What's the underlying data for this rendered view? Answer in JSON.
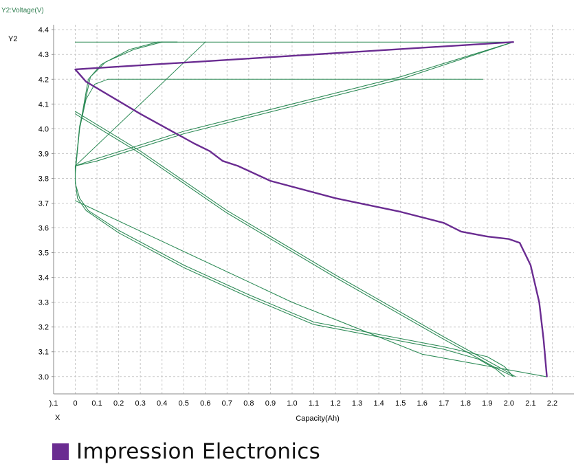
{
  "chart_data": {
    "type": "line",
    "y_axis_title": "Y2:Voltage(V)",
    "y_axis_name": "Y2",
    "x_axis_name": "X",
    "xlabel": "Capacity(Ah)",
    "xlim": [
      -0.1,
      2.3
    ],
    "ylim": [
      2.93,
      4.42
    ],
    "x_ticks": [
      -0.1,
      0,
      0.1,
      0.2,
      0.3,
      0.4,
      0.5,
      0.6,
      0.7,
      0.8,
      0.9,
      1.0,
      1.1,
      1.2,
      1.3,
      1.4,
      1.5,
      1.6,
      1.7,
      1.8,
      1.9,
      2.0,
      2.1,
      2.2
    ],
    "x_tick_labels": [
      ").1",
      "0",
      "0.1",
      "0.2",
      "0.3",
      "0.4",
      "0.5",
      "0.6",
      "0.7",
      "0.8",
      "0.9",
      "1.0",
      "1.1",
      "1.2",
      "1.3",
      "1.4",
      "1.5",
      "1.6",
      "1.7",
      "1.8",
      "1.9",
      "2.0",
      "2.1",
      "2.2"
    ],
    "y_ticks": [
      3.0,
      3.1,
      3.2,
      3.3,
      3.4,
      3.5,
      3.6,
      3.7,
      3.8,
      3.9,
      4.0,
      4.1,
      4.2,
      4.3,
      4.4
    ],
    "y_tick_labels": [
      "3.0",
      "3.1",
      "3.2",
      "3.3",
      "3.4",
      "3.5",
      "3.6",
      "3.7",
      "3.8",
      "3.9",
      "4.0",
      "4.1",
      "4.2",
      "4.3",
      "4.4"
    ],
    "grid": true,
    "colors": {
      "green": "#2e8b57",
      "purple": "#6a2c91",
      "grid": "#c8c8c8",
      "axis_title": "#2e7d4f"
    },
    "series": [
      {
        "color": "green",
        "width": 1.1,
        "points": [
          [
            0,
            4.06
          ],
          [
            0.3,
            3.9
          ],
          [
            0.7,
            3.66
          ],
          [
            1.2,
            3.4
          ],
          [
            1.7,
            3.15
          ],
          [
            1.95,
            3.03
          ],
          [
            2.02,
            3.0
          ]
        ]
      },
      {
        "color": "green",
        "width": 1.1,
        "points": [
          [
            0,
            4.07
          ],
          [
            0.3,
            3.91
          ],
          [
            0.7,
            3.67
          ],
          [
            1.2,
            3.41
          ],
          [
            1.7,
            3.16
          ],
          [
            1.95,
            3.04
          ],
          [
            2.03,
            3.0
          ]
        ]
      },
      {
        "color": "green",
        "width": 1.1,
        "points": [
          [
            2.02,
            3.0
          ],
          [
            1.98,
            3.04
          ],
          [
            1.9,
            3.08
          ],
          [
            1.7,
            3.12
          ],
          [
            1.4,
            3.17
          ],
          [
            1.1,
            3.22
          ],
          [
            0.8,
            3.33
          ],
          [
            0.5,
            3.45
          ],
          [
            0.2,
            3.59
          ],
          [
            0.06,
            3.67
          ],
          [
            0.02,
            3.72
          ],
          [
            0,
            3.78
          ],
          [
            0,
            3.85
          ],
          [
            0.1,
            3.87
          ],
          [
            0.5,
            3.98
          ],
          [
            1.0,
            4.09
          ],
          [
            1.5,
            4.2
          ],
          [
            2.02,
            4.35
          ]
        ]
      },
      {
        "color": "green",
        "width": 1.1,
        "points": [
          [
            1.98,
            3.0
          ],
          [
            1.94,
            3.03
          ],
          [
            1.86,
            3.07
          ],
          [
            1.7,
            3.11
          ],
          [
            1.4,
            3.16
          ],
          [
            1.1,
            3.21
          ],
          [
            0.8,
            3.32
          ],
          [
            0.5,
            3.44
          ],
          [
            0.2,
            3.58
          ],
          [
            0.05,
            3.67
          ],
          [
            0.01,
            3.72
          ],
          [
            0,
            3.79
          ],
          [
            0,
            3.85
          ],
          [
            0.1,
            3.88
          ],
          [
            0.5,
            3.99
          ],
          [
            1.0,
            4.1
          ],
          [
            1.5,
            4.21
          ],
          [
            2.02,
            4.35
          ]
        ]
      },
      {
        "color": "green",
        "width": 1.1,
        "points": [
          [
            0,
            3.71
          ],
          [
            1.0,
            3.3
          ],
          [
            1.6,
            3.09
          ],
          [
            2.17,
            3.0
          ]
        ]
      },
      {
        "color": "green",
        "width": 1.0,
        "points": [
          [
            0,
            4.35
          ],
          [
            2.02,
            4.35
          ]
        ]
      },
      {
        "color": "green",
        "width": 1.0,
        "points": [
          [
            0.15,
            4.2
          ],
          [
            1.88,
            4.2
          ]
        ]
      },
      {
        "color": "green",
        "width": 1.0,
        "points": [
          [
            0,
            3.85
          ],
          [
            0.6,
            4.35
          ]
        ]
      },
      {
        "color": "green",
        "width": 1.0,
        "points": [
          [
            0,
            3.84
          ],
          [
            0.02,
            4.0
          ],
          [
            0.05,
            4.12
          ],
          [
            0.09,
            4.18
          ],
          [
            0.15,
            4.2
          ]
        ]
      },
      {
        "color": "green",
        "width": 1.1,
        "points": [
          [
            0,
            3.82
          ],
          [
            0.02,
            4.0
          ],
          [
            0.06,
            4.2
          ],
          [
            0.12,
            4.26
          ],
          [
            0.25,
            4.32
          ],
          [
            0.38,
            4.35
          ],
          [
            0.47,
            4.35
          ]
        ]
      },
      {
        "color": "green",
        "width": 1.1,
        "points": [
          [
            0,
            3.83
          ],
          [
            0.02,
            4.01
          ],
          [
            0.07,
            4.21
          ],
          [
            0.14,
            4.27
          ],
          [
            0.27,
            4.32
          ],
          [
            0.4,
            4.35
          ],
          [
            0.47,
            4.35
          ]
        ]
      },
      {
        "color": "purple",
        "width": 2.4,
        "points": [
          [
            2.02,
            4.35
          ],
          [
            0,
            4.24
          ],
          [
            0.05,
            4.19
          ],
          [
            0.3,
            4.06
          ],
          [
            0.55,
            3.94
          ],
          [
            0.62,
            3.91
          ],
          [
            0.68,
            3.87
          ],
          [
            0.75,
            3.85
          ],
          [
            0.9,
            3.79
          ],
          [
            1.2,
            3.72
          ],
          [
            1.5,
            3.665
          ],
          [
            1.7,
            3.62
          ],
          [
            1.78,
            3.585
          ],
          [
            1.9,
            3.565
          ],
          [
            2.0,
            3.555
          ],
          [
            2.05,
            3.54
          ],
          [
            2.1,
            3.45
          ],
          [
            2.14,
            3.3
          ],
          [
            2.16,
            3.15
          ],
          [
            2.175,
            3.0
          ]
        ]
      }
    ]
  },
  "brand": {
    "name": "Impression Electronics",
    "swatch_color": "#6a2c91"
  }
}
